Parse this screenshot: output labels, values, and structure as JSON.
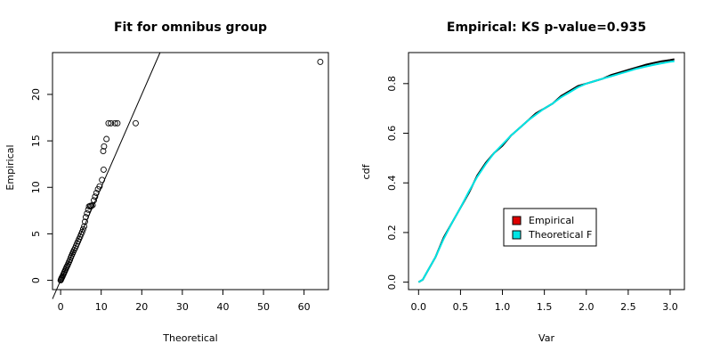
{
  "chart_data": [
    {
      "type": "scatter",
      "title": "Fit for omnibus group",
      "xlabel": "Theoretical",
      "ylabel": "Empirical",
      "xlim": [
        -2,
        66
      ],
      "ylim": [
        -1,
        24.5
      ],
      "x_ticks": [
        0,
        10,
        20,
        30,
        40,
        50,
        60
      ],
      "y_ticks": [
        0,
        5,
        10,
        15,
        20
      ],
      "reference_line": {
        "slope": 1,
        "intercept": 0
      },
      "points": [
        [
          0,
          0
        ],
        [
          0.1,
          0.1
        ],
        [
          0.2,
          0.2
        ],
        [
          0.3,
          0.3
        ],
        [
          0.45,
          0.4
        ],
        [
          0.6,
          0.55
        ],
        [
          0.75,
          0.7
        ],
        [
          0.9,
          0.85
        ],
        [
          1.05,
          1
        ],
        [
          1.2,
          1.15
        ],
        [
          1.35,
          1.3
        ],
        [
          1.5,
          1.45
        ],
        [
          1.7,
          1.6
        ],
        [
          1.9,
          1.8
        ],
        [
          2.1,
          2
        ],
        [
          2.3,
          2.2
        ],
        [
          2.5,
          2.45
        ],
        [
          2.7,
          2.65
        ],
        [
          2.9,
          2.85
        ],
        [
          3.1,
          3.05
        ],
        [
          3.3,
          3.25
        ],
        [
          3.55,
          3.45
        ],
        [
          3.8,
          3.7
        ],
        [
          4.05,
          3.95
        ],
        [
          4.3,
          4.2
        ],
        [
          4.55,
          4.45
        ],
        [
          4.8,
          4.7
        ],
        [
          5.05,
          4.95
        ],
        [
          5.3,
          5.2
        ],
        [
          5.55,
          5.5
        ],
        [
          5.8,
          5.8
        ],
        [
          6,
          6.3
        ],
        [
          6.2,
          6.8
        ],
        [
          6.5,
          7.2
        ],
        [
          6.8,
          7.6
        ],
        [
          7,
          7.95
        ],
        [
          7.3,
          8
        ],
        [
          7.6,
          8
        ],
        [
          7.9,
          8.1
        ],
        [
          8.2,
          8.6
        ],
        [
          8.5,
          9
        ],
        [
          8.8,
          9.4
        ],
        [
          9.2,
          9.8
        ],
        [
          9.6,
          10.1
        ],
        [
          10.2,
          10.8
        ],
        [
          10.6,
          11.9
        ],
        [
          10.5,
          13.9
        ],
        [
          10.7,
          14.4
        ],
        [
          11.3,
          15.2
        ],
        [
          11.8,
          16.9
        ],
        [
          12.4,
          16.9
        ],
        [
          13.4,
          16.9
        ],
        [
          14,
          16.9
        ],
        [
          18.5,
          16.9
        ],
        [
          64,
          23.5
        ]
      ]
    },
    {
      "type": "line",
      "title": "Empirical: KS p-value=0.935",
      "xlabel": "Var",
      "ylabel": "cdf",
      "xlim": [
        -0.12,
        3.17
      ],
      "ylim": [
        -0.03,
        0.925
      ],
      "x_ticks": [
        0.0,
        0.5,
        1.0,
        1.5,
        2.0,
        2.5,
        3.0
      ],
      "y_ticks": [
        0.0,
        0.2,
        0.4,
        0.6,
        0.8
      ],
      "x_tick_labels": [
        "0.0",
        "0.5",
        "1.0",
        "1.5",
        "2.0",
        "2.5",
        "3.0"
      ],
      "y_tick_labels": [
        "0.0",
        "0.2",
        "0.4",
        "0.6",
        "0.8"
      ],
      "legend_position": "center-right",
      "series": [
        {
          "name": "Empirical",
          "color": "#000000",
          "legend_color": "#dd0000",
          "x": [
            0,
            0.05,
            0.1,
            0.2,
            0.3,
            0.4,
            0.5,
            0.6,
            0.7,
            0.8,
            0.9,
            1.0,
            1.1,
            1.2,
            1.3,
            1.4,
            1.5,
            1.6,
            1.7,
            1.8,
            1.9,
            2.0,
            2.1,
            2.2,
            2.3,
            2.4,
            2.5,
            2.6,
            2.7,
            2.8,
            2.9,
            3.0,
            3.05
          ],
          "values": [
            0,
            0.01,
            0.04,
            0.1,
            0.18,
            0.24,
            0.3,
            0.36,
            0.43,
            0.48,
            0.52,
            0.55,
            0.59,
            0.62,
            0.65,
            0.68,
            0.7,
            0.72,
            0.75,
            0.77,
            0.79,
            0.8,
            0.81,
            0.82,
            0.835,
            0.845,
            0.855,
            0.865,
            0.875,
            0.883,
            0.89,
            0.895,
            0.898
          ]
        },
        {
          "name": "Theoretical F",
          "color": "#00e5e5",
          "legend_color": "#00e5e5",
          "x": [
            0,
            0.05,
            0.1,
            0.2,
            0.3,
            0.4,
            0.5,
            0.6,
            0.7,
            0.8,
            0.9,
            1.0,
            1.1,
            1.2,
            1.3,
            1.4,
            1.5,
            1.6,
            1.7,
            1.8,
            1.9,
            2.0,
            2.1,
            2.2,
            2.3,
            2.4,
            2.5,
            2.6,
            2.7,
            2.8,
            2.9,
            3.0,
            3.05
          ],
          "values": [
            0,
            0.01,
            0.04,
            0.1,
            0.175,
            0.24,
            0.3,
            0.365,
            0.425,
            0.475,
            0.52,
            0.555,
            0.59,
            0.62,
            0.65,
            0.675,
            0.7,
            0.72,
            0.745,
            0.765,
            0.785,
            0.8,
            0.81,
            0.82,
            0.83,
            0.84,
            0.85,
            0.86,
            0.868,
            0.875,
            0.882,
            0.888,
            0.89
          ]
        }
      ]
    }
  ]
}
